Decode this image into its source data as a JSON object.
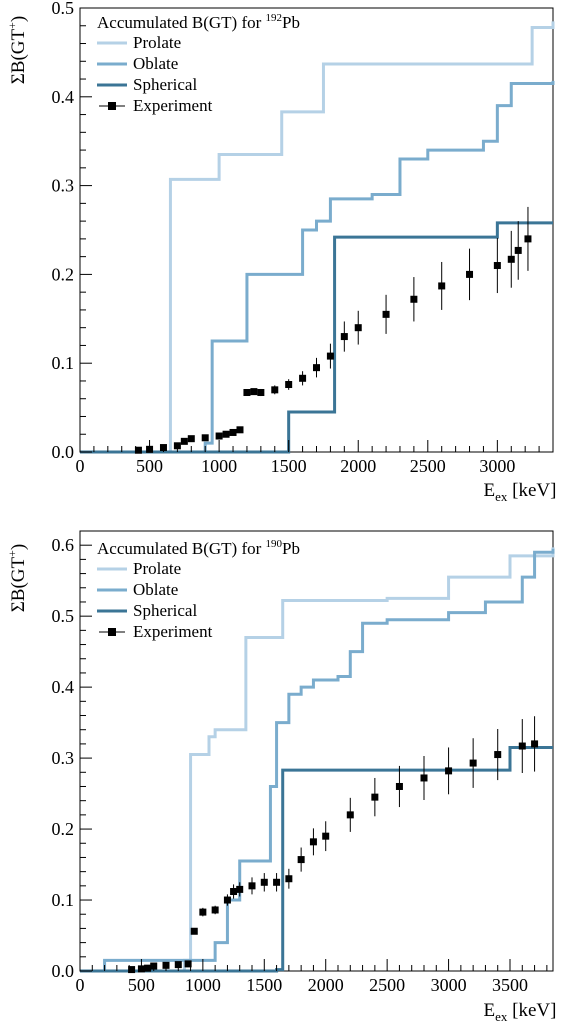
{
  "chart_data": [
    {
      "type": "line",
      "legend_title": "Accumulated B(GT) for ",
      "legend_title_sup": "192",
      "legend_title_tail": "Pb",
      "ylabel": "ΣB(GT",
      "ylabel_sup": "+",
      "ylabel_tail": ")",
      "xlabel": "E",
      "xlabel_sub": "ex",
      "xlabel_tail": " [keV]",
      "xlim": [
        0,
        3400
      ],
      "ylim": [
        0,
        0.5
      ],
      "xticks": [
        0,
        500,
        1000,
        1500,
        2000,
        2500,
        3000
      ],
      "yticks": [
        0.0,
        0.1,
        0.2,
        0.3,
        0.4,
        0.5
      ],
      "ytick_labels": [
        "0.0",
        "0.1",
        "0.2",
        "0.3",
        "0.4",
        "0.5"
      ],
      "legend_position": "top-left",
      "series": [
        {
          "name": "Prolate",
          "color": "#b5d1e6",
          "style": "step",
          "x": [
            0,
            650,
            650,
            1000,
            1000,
            1450,
            1450,
            1750,
            1750,
            3250,
            3250,
            3400
          ],
          "y": [
            0,
            0,
            0.307,
            0.317,
            0.335,
            0.337,
            0.383,
            0.383,
            0.437,
            0.467,
            0.478,
            0.485
          ]
        },
        {
          "name": "Oblate",
          "color": "#7aaccd",
          "style": "step",
          "x": [
            0,
            900,
            900,
            950,
            950,
            1200,
            1200,
            1600,
            1600,
            1700,
            1800,
            1800,
            2100,
            2300,
            2500,
            2900,
            3000,
            3100,
            3400
          ],
          "y": [
            0,
            0,
            0.01,
            0.08,
            0.125,
            0.16,
            0.2,
            0.21,
            0.25,
            0.26,
            0.265,
            0.285,
            0.29,
            0.33,
            0.34,
            0.35,
            0.39,
            0.415,
            0.418
          ]
        },
        {
          "name": "Spherical",
          "color": "#3b7596",
          "style": "step",
          "x": [
            0,
            1500,
            1500,
            1830,
            1830,
            3000,
            3000,
            3400
          ],
          "y": [
            0,
            0,
            0.045,
            0.045,
            0.242,
            0.243,
            0.258,
            0.258
          ]
        },
        {
          "name": "Experiment",
          "color": "#000000",
          "style": "points",
          "x": [
            420,
            500,
            600,
            700,
            750,
            800,
            900,
            1000,
            1050,
            1100,
            1150,
            1200,
            1250,
            1300,
            1400,
            1500,
            1600,
            1700,
            1800,
            1900,
            2000,
            2200,
            2400,
            2600,
            2800,
            3000,
            3100,
            3150,
            3220
          ],
          "y": [
            0.002,
            0.003,
            0.005,
            0.007,
            0.012,
            0.015,
            0.016,
            0.018,
            0.02,
            0.022,
            0.025,
            0.067,
            0.068,
            0.067,
            0.07,
            0.076,
            0.083,
            0.095,
            0.108,
            0.13,
            0.14,
            0.155,
            0.172,
            0.187,
            0.2,
            0.21,
            0.217,
            0.227,
            0.24
          ],
          "err": [
            0,
            0,
            0,
            0,
            0,
            0,
            0,
            0,
            0,
            0,
            0,
            0.003,
            0.003,
            0.004,
            0.005,
            0.006,
            0.008,
            0.011,
            0.014,
            0.017,
            0.019,
            0.022,
            0.025,
            0.027,
            0.029,
            0.031,
            0.032,
            0.033,
            0.036
          ]
        }
      ]
    },
    {
      "type": "line",
      "legend_title": "Accumulated B(GT) for ",
      "legend_title_sup": "190",
      "legend_title_tail": "Pb",
      "ylabel": "ΣB(GT",
      "ylabel_sup": "+",
      "ylabel_tail": ")",
      "xlabel": "E",
      "xlabel_sub": "ex",
      "xlabel_tail": " [keV]",
      "xlim": [
        0,
        3850
      ],
      "ylim": [
        0,
        0.62
      ],
      "xticks": [
        0,
        500,
        1000,
        1500,
        2000,
        2500,
        3000,
        3500
      ],
      "yticks": [
        0.0,
        0.1,
        0.2,
        0.3,
        0.4,
        0.5,
        0.6
      ],
      "ytick_labels": [
        "0.0",
        "0.1",
        "0.2",
        "0.3",
        "0.4",
        "0.5",
        "0.6"
      ],
      "legend_position": "top-left",
      "series": [
        {
          "name": "Prolate",
          "color": "#b5d1e6",
          "style": "step",
          "x": [
            0,
            850,
            850,
            900,
            900,
            1050,
            1100,
            1350,
            1350,
            1650,
            1650,
            2500,
            3000,
            3500,
            3850
          ],
          "y": [
            0,
            0,
            0.015,
            0.3,
            0.305,
            0.33,
            0.34,
            0.46,
            0.47,
            0.47,
            0.522,
            0.525,
            0.555,
            0.585,
            0.597
          ]
        },
        {
          "name": "Oblate",
          "color": "#7aaccd",
          "style": "step",
          "x": [
            0,
            200,
            200,
            900,
            1100,
            1200,
            1300,
            1550,
            1600,
            1700,
            1800,
            1900,
            2100,
            2200,
            2300,
            2500,
            3000,
            3300,
            3600,
            3700,
            3850
          ],
          "y": [
            0,
            0,
            0.015,
            0.015,
            0.04,
            0.1,
            0.155,
            0.26,
            0.35,
            0.39,
            0.4,
            0.41,
            0.415,
            0.45,
            0.49,
            0.495,
            0.505,
            0.52,
            0.555,
            0.59,
            0.595
          ]
        },
        {
          "name": "Spherical",
          "color": "#3b7596",
          "style": "step",
          "x": [
            0,
            1600,
            1600,
            1650,
            1650,
            3500,
            3500,
            3850
          ],
          "y": [
            0,
            0,
            0.002,
            0.002,
            0.283,
            0.283,
            0.315,
            0.315
          ]
        },
        {
          "name": "Experiment",
          "color": "#000000",
          "style": "points",
          "x": [
            420,
            500,
            550,
            600,
            700,
            800,
            880,
            930,
            1000,
            1100,
            1200,
            1250,
            1300,
            1400,
            1500,
            1600,
            1700,
            1800,
            1900,
            2000,
            2200,
            2400,
            2600,
            2800,
            3000,
            3200,
            3400,
            3600,
            3700
          ],
          "y": [
            0.002,
            0.003,
            0.004,
            0.007,
            0.008,
            0.009,
            0.01,
            0.056,
            0.083,
            0.086,
            0.1,
            0.112,
            0.115,
            0.12,
            0.125,
            0.125,
            0.13,
            0.157,
            0.182,
            0.19,
            0.22,
            0.245,
            0.26,
            0.272,
            0.282,
            0.293,
            0.305,
            0.317,
            0.32
          ],
          "err": [
            0,
            0,
            0,
            0,
            0,
            0,
            0,
            0.004,
            0.006,
            0.006,
            0.008,
            0.01,
            0.01,
            0.012,
            0.013,
            0.013,
            0.014,
            0.017,
            0.019,
            0.021,
            0.024,
            0.027,
            0.029,
            0.031,
            0.033,
            0.035,
            0.036,
            0.038,
            0.039
          ]
        }
      ]
    }
  ]
}
